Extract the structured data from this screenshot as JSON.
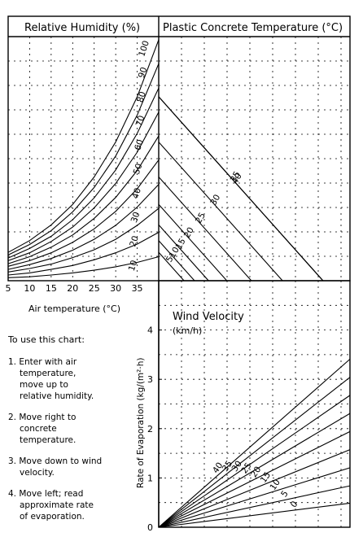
{
  "chart_data": {
    "type": "line",
    "panels": [
      {
        "id": "relative-humidity",
        "title": "Relative Humidity (%)",
        "xlabel": "Air temperature (°C)",
        "xticks": [
          "5",
          "10",
          "15",
          "20",
          "25",
          "30",
          "35"
        ],
        "xlim": [
          5,
          40
        ],
        "series": [
          {
            "name": "100",
            "values": [
              6.5,
              9.2,
              12.8,
              17.5,
              23.8,
              31.8,
              42.2,
              55.3
            ]
          },
          {
            "name": "90",
            "values": [
              5.9,
              8.3,
              11.5,
              15.8,
              21.4,
              28.6,
              38.0,
              49.8
            ]
          },
          {
            "name": "80",
            "values": [
              5.2,
              7.4,
              10.2,
              14.0,
              19.0,
              25.4,
              33.8,
              44.2
            ]
          },
          {
            "name": "70",
            "values": [
              4.6,
              6.4,
              9.0,
              12.3,
              16.7,
              22.3,
              29.5,
              38.7
            ]
          },
          {
            "name": "60",
            "values": [
              3.9,
              5.5,
              7.7,
              10.5,
              14.3,
              19.1,
              25.3,
              33.2
            ]
          },
          {
            "name": "50",
            "values": [
              3.3,
              4.6,
              6.4,
              8.8,
              11.9,
              15.9,
              21.1,
              27.7
            ]
          },
          {
            "name": "40",
            "values": [
              2.6,
              3.7,
              5.1,
              7.0,
              9.5,
              12.7,
              16.9,
              22.1
            ]
          },
          {
            "name": "30",
            "values": [
              2.0,
              2.8,
              3.8,
              5.3,
              7.1,
              9.5,
              12.7,
              16.6
            ]
          },
          {
            "name": "20",
            "values": [
              1.3,
              1.8,
              2.6,
              3.5,
              4.8,
              6.4,
              8.4,
              11.1
            ]
          },
          {
            "name": "10",
            "values": [
              0.7,
              0.9,
              1.3,
              1.8,
              2.4,
              3.2,
              4.2,
              5.5
            ]
          }
        ]
      },
      {
        "id": "plastic-concrete-temperature",
        "title": "Plastic Concrete Temperature (°C)",
        "series": [
          {
            "name": "5"
          },
          {
            "name": "10"
          },
          {
            "name": "15"
          },
          {
            "name": "20"
          },
          {
            "name": "25"
          },
          {
            "name": "30"
          },
          {
            "name": "35"
          },
          {
            "name": "40"
          }
        ]
      },
      {
        "id": "wind-velocity",
        "title": "Wind Velocity",
        "subtitle": "(km/h)",
        "ylabel": "Rate of Evaporation (kg/(m²·h)",
        "yticks": [
          "0",
          "1",
          "2",
          "3",
          "4"
        ],
        "ylim": [
          0,
          5
        ],
        "series": [
          {
            "name": "0",
            "slope": 0.093
          },
          {
            "name": "5",
            "slope": 0.16
          },
          {
            "name": "10",
            "slope": 0.23
          },
          {
            "name": "15",
            "slope": 0.3
          },
          {
            "name": "20",
            "slope": 0.37
          },
          {
            "name": "25",
            "slope": 0.44
          },
          {
            "name": "30",
            "slope": 0.51
          },
          {
            "name": "35",
            "slope": 0.58
          },
          {
            "name": "40",
            "slope": 0.65
          }
        ]
      }
    ],
    "grid": true
  },
  "instructions": {
    "heading": "To use this chart:",
    "steps": [
      [
        "1. Enter with air",
        "temperature,",
        "move up to",
        "relative humidity."
      ],
      [
        "2. Move right to",
        "concrete",
        "temperature."
      ],
      [
        "3. Move down to wind",
        "velocity."
      ],
      [
        "4. Move left; read",
        "approximate rate",
        "of evaporation."
      ]
    ]
  }
}
